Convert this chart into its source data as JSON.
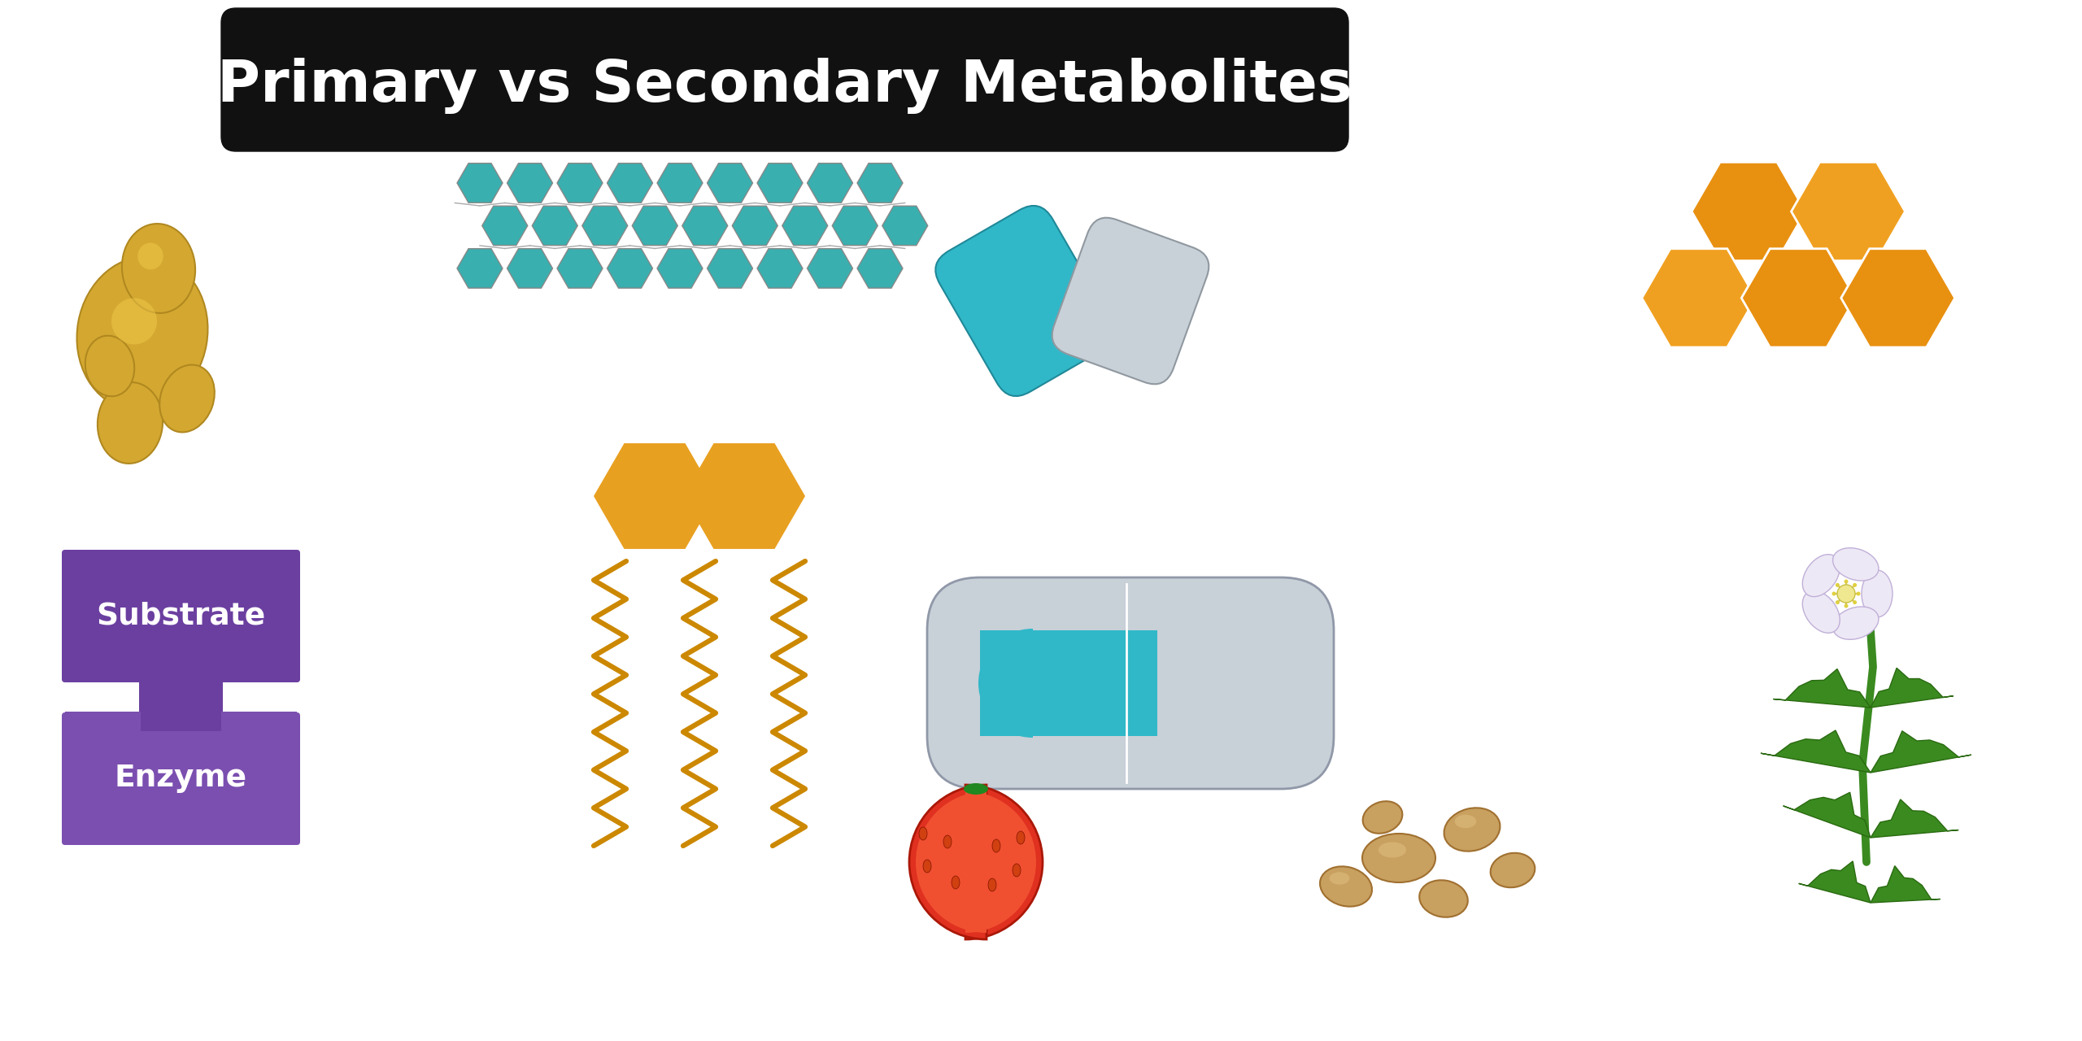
{
  "title": "Primary vs Secondary Metabolites",
  "title_fontsize": 52,
  "title_bg": "#111111",
  "title_fg": "#ffffff",
  "bg_color": "#ffffff",
  "substrate_color": "#6b3fa0",
  "enzyme_color": "#7b4fb0",
  "substrate_text": "Substrate",
  "enzyme_text": "Enzyme",
  "teal_color": "#3aafaf",
  "orange_color": "#e8a020",
  "gold_color": "#cc8800",
  "tomato_red": "#e03020",
  "pill_teal": "#30b8c8",
  "pill_gray": "#c8d0d8",
  "honeycomb_orange": "#e89010",
  "honeycomb_gold": "#f0a020",
  "plant_green": "#3a8a20",
  "ginger_tan": "#c8a060",
  "yeast_color": "#d4a830",
  "yeast_edge": "#b08820"
}
